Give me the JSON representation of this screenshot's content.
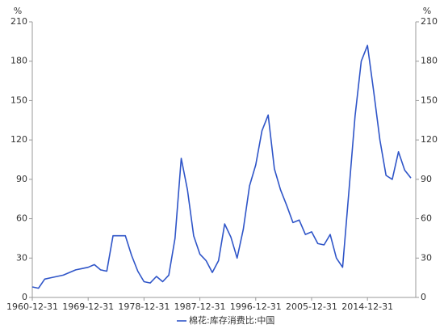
{
  "chart_data": {
    "type": "line",
    "y_unit": "%",
    "y2_unit": "%",
    "x": [
      "1960-12-31",
      "1961-12-31",
      "1962-12-31",
      "1963-12-31",
      "1964-12-31",
      "1965-12-31",
      "1966-12-31",
      "1967-12-31",
      "1968-12-31",
      "1969-12-31",
      "1970-12-31",
      "1971-12-31",
      "1972-12-31",
      "1973-12-31",
      "1974-12-31",
      "1975-12-31",
      "1976-12-31",
      "1977-12-31",
      "1978-12-31",
      "1979-12-31",
      "1980-12-31",
      "1981-12-31",
      "1982-12-31",
      "1983-12-31",
      "1984-12-31",
      "1985-12-31",
      "1986-12-31",
      "1987-12-31",
      "1988-12-31",
      "1989-12-31",
      "1990-12-31",
      "1991-12-31",
      "1992-12-31",
      "1993-12-31",
      "1994-12-31",
      "1995-12-31",
      "1996-12-31",
      "1997-12-31",
      "1998-12-31",
      "1999-12-31",
      "2000-12-31",
      "2001-12-31",
      "2002-12-31",
      "2003-12-31",
      "2004-12-31",
      "2005-12-31",
      "2006-12-31",
      "2007-12-31",
      "2008-12-31",
      "2009-12-31",
      "2010-12-31",
      "2011-12-31",
      "2012-12-31",
      "2013-12-31",
      "2014-12-31",
      "2015-12-31",
      "2016-12-31",
      "2017-12-31",
      "2018-12-31",
      "2019-12-31",
      "2020-12-31",
      "2021-12-31"
    ],
    "xticks": [
      "1960-12-31",
      "1969-12-31",
      "1978-12-31",
      "1987-12-31",
      "1996-12-31",
      "2005-12-31",
      "2014-12-31"
    ],
    "series": [
      {
        "name": "棉花:库存消费比:中国",
        "color": "#2f55c8",
        "values": [
          8,
          7,
          14,
          15,
          16,
          17,
          19,
          21,
          22,
          23,
          25,
          21,
          20,
          47,
          47,
          47,
          32,
          20,
          12,
          11,
          16,
          12,
          17,
          45,
          106,
          82,
          47,
          33,
          28,
          19,
          28,
          56,
          46,
          30,
          52,
          85,
          101,
          127,
          139,
          98,
          82,
          70,
          57,
          59,
          48,
          50,
          41,
          40,
          48,
          30,
          23,
          80,
          138,
          180,
          192,
          157,
          120,
          93,
          90,
          111,
          97,
          91
        ]
      }
    ],
    "ylim": [
      0,
      210
    ],
    "yticks": [
      0,
      30,
      60,
      90,
      120,
      150,
      180,
      210
    ],
    "y2lim": [
      0,
      210
    ],
    "y2ticks": [
      0,
      30,
      60,
      90,
      120,
      150,
      180,
      210
    ],
    "legend": "bottom"
  }
}
